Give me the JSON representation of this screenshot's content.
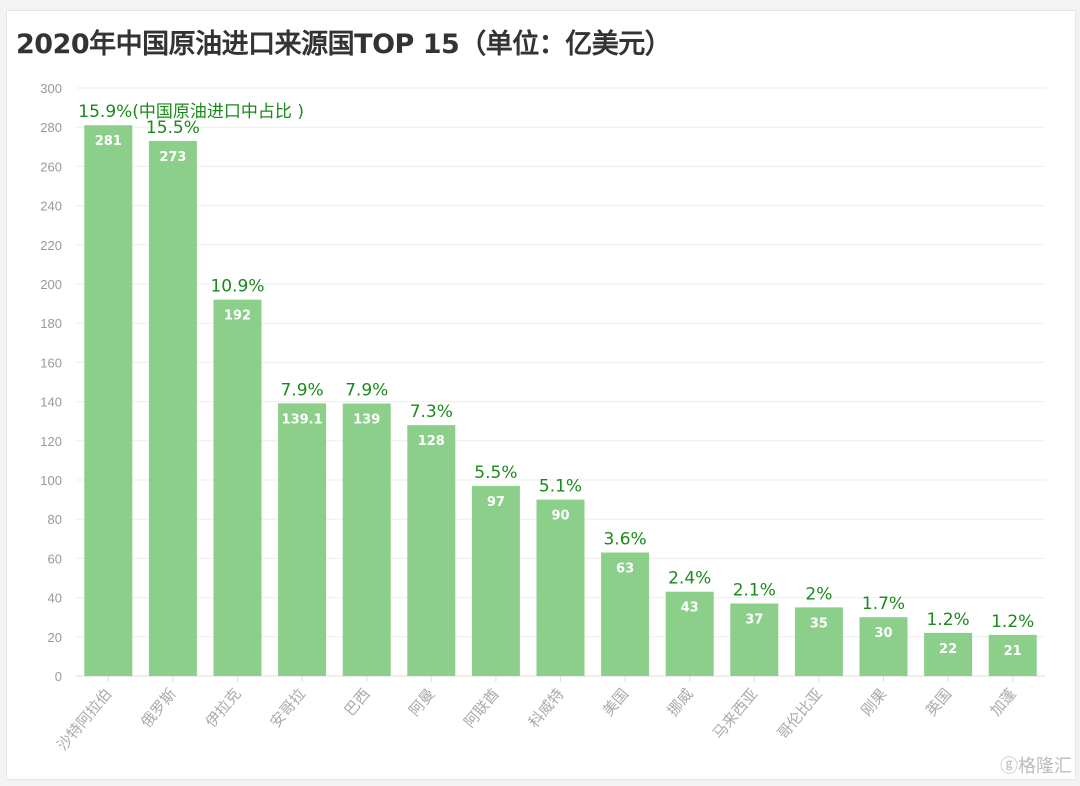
{
  "chart_data": {
    "type": "bar",
    "title": "2020年中国原油进口来源国TOP 15（单位：亿美元）",
    "categories": [
      "沙特阿拉伯",
      "俄罗斯",
      "伊拉克",
      "安哥拉",
      "巴西",
      "阿曼",
      "阿联酋",
      "科威特",
      "美国",
      "挪威",
      "马来西亚",
      "哥伦比亚",
      "刚果",
      "英国",
      "加蓬"
    ],
    "values": [
      281,
      273,
      192,
      139.1,
      139,
      128,
      97,
      90,
      63,
      43,
      37,
      35,
      30,
      22,
      21
    ],
    "value_labels": [
      "281",
      "273",
      "192",
      "139.1",
      "139",
      "128",
      "97",
      "90",
      "63",
      "43",
      "37",
      "35",
      "30",
      "22",
      "21"
    ],
    "share_labels": [
      "15.9%(中国原油进口中占比 )",
      "15.5%",
      "10.9%",
      "7.9%",
      "7.9%",
      "7.3%",
      "5.5%",
      "5.1%",
      "3.6%",
      "2.4%",
      "2.1%",
      "2%",
      "1.7%",
      "1.2%",
      "1.2%"
    ],
    "ylim": [
      0,
      300
    ],
    "yticks": [
      0,
      20,
      40,
      60,
      80,
      100,
      120,
      140,
      160,
      180,
      200,
      220,
      240,
      260,
      280,
      300
    ],
    "grid": true,
    "xlabel": "",
    "ylabel": "",
    "colors": {
      "bar": "#8ccf8a",
      "share_label": "#1a8a1a",
      "value_label": "#ffffff",
      "axis_text": "#999999",
      "grid": "#eeeeee"
    }
  },
  "watermark": "格隆汇"
}
